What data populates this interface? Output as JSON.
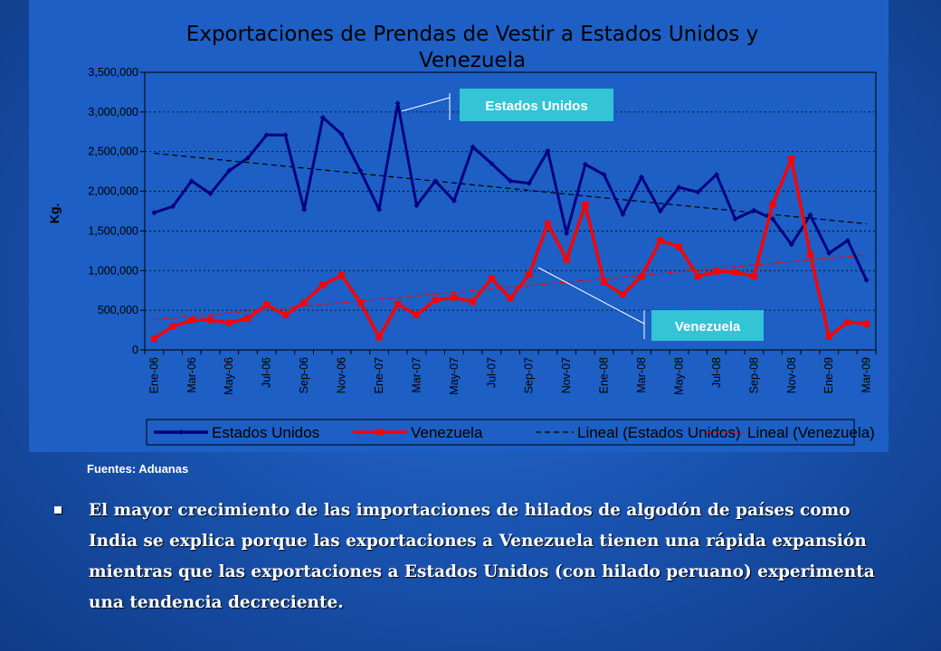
{
  "chart_data": {
    "type": "line",
    "title_lines": [
      "Exportaciones de Prendas de Vestir a Estados Unidos y",
      "Venezuela"
    ],
    "ylabel": "Kg.",
    "ylim": [
      0,
      3500000
    ],
    "yticks": [
      0,
      500000,
      1000000,
      1500000,
      2000000,
      2500000,
      3000000,
      3500000
    ],
    "ytick_labels": [
      "0",
      "500,000",
      "1,000,000",
      "1,500,000",
      "2,000,000",
      "2,500,000",
      "3,000,000",
      "3,500,000"
    ],
    "x_tick_labels": [
      "Ene-06",
      "Mar-06",
      "May-06",
      "Jul-06",
      "Sep-06",
      "Nov-06",
      "Ene-07",
      "Mar-07",
      "May-07",
      "Jul-07",
      "Sep-07",
      "Nov-07",
      "Ene-08",
      "Mar-08",
      "May-08",
      "Jul-08",
      "Sep-08",
      "Nov-08",
      "Ene-09",
      "Mar-09"
    ],
    "x": [
      "Ene-06",
      "Feb-06",
      "Mar-06",
      "Abr-06",
      "May-06",
      "Jun-06",
      "Jul-06",
      "Ago-06",
      "Sep-06",
      "Oct-06",
      "Nov-06",
      "Dic-06",
      "Ene-07",
      "Feb-07",
      "Mar-07",
      "Abr-07",
      "May-07",
      "Jun-07",
      "Jul-07",
      "Ago-07",
      "Sep-07",
      "Oct-07",
      "Nov-07",
      "Dic-07",
      "Ene-08",
      "Feb-08",
      "Mar-08",
      "Abr-08",
      "May-08",
      "Jun-08",
      "Jul-08",
      "Ago-08",
      "Sep-08",
      "Oct-08",
      "Nov-08",
      "Dic-08",
      "Ene-09",
      "Feb-09",
      "Mar-09"
    ],
    "series": [
      {
        "name": "Estados Unidos",
        "color": "#000080",
        "values": [
          1730000,
          1810000,
          2130000,
          1970000,
          2260000,
          2420000,
          2710000,
          2710000,
          1770000,
          2930000,
          2720000,
          2260000,
          1770000,
          3110000,
          1820000,
          2130000,
          1880000,
          2560000,
          2350000,
          2130000,
          2100000,
          2510000,
          1470000,
          2340000,
          2210000,
          1710000,
          2180000,
          1750000,
          2050000,
          1990000,
          2210000,
          1650000,
          1760000,
          1650000,
          1330000,
          1700000,
          1220000,
          1380000,
          880000
        ]
      },
      {
        "name": "Venezuela",
        "color": "#ff0000",
        "values": [
          140000,
          300000,
          370000,
          380000,
          340000,
          400000,
          570000,
          440000,
          600000,
          820000,
          940000,
          600000,
          160000,
          580000,
          440000,
          630000,
          660000,
          610000,
          900000,
          650000,
          950000,
          1590000,
          1140000,
          1830000,
          850000,
          700000,
          930000,
          1380000,
          1300000,
          930000,
          990000,
          980000,
          930000,
          1840000,
          2410000,
          1200000,
          170000,
          350000,
          330000
        ]
      },
      {
        "name": "Lineal (Estados Unidos)",
        "color": "#000000",
        "style": "dashed",
        "trend": [
          2480000,
          1590000
        ]
      },
      {
        "name": "Lineal (Venezuela)",
        "color": "#ff0000",
        "style": "dashed",
        "trend": [
          380000,
          1200000
        ]
      }
    ],
    "callouts": [
      "Estados Unidos",
      "Venezuela"
    ],
    "grid": true,
    "legend_placement": "bottom"
  },
  "source": "Fuentes: Aduanas",
  "bullet": "El mayor crecimiento de las importaciones de hilados de algodón de países como India se explica porque las exportaciones a Venezuela tienen una rápida expansión mientras que las exportaciones a Estados Unidos (con hilado peruano) experimenta una tendencia decreciente.",
  "colors": {
    "background": "#1a55b3",
    "plot_border": "#000000"
  }
}
